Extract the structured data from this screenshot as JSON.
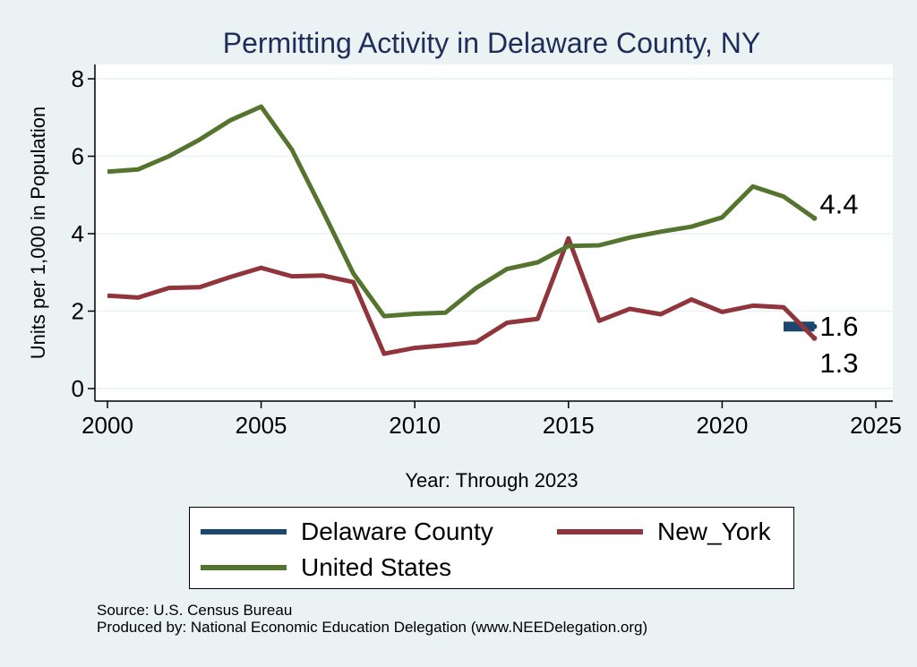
{
  "chart_data": {
    "type": "line",
    "title": "Permitting Activity in Delaware County, NY",
    "xlabel": "Year: Through 2023",
    "ylabel": "Units per 1,000 in Population",
    "xlim": [
      2000,
      2025
    ],
    "ylim": [
      0,
      8
    ],
    "x_ticks": [
      "2000",
      "2005",
      "2010",
      "2015",
      "2020",
      "2025"
    ],
    "y_ticks": [
      "0",
      "2",
      "4",
      "6",
      "8"
    ],
    "grid": true,
    "legend_position": "bottom",
    "series": [
      {
        "name": "Delaware County",
        "color": "#1a476f",
        "x": [
          2022,
          2023
        ],
        "y": [
          1.6,
          1.6
        ],
        "end_label": "1.6"
      },
      {
        "name": "New_York",
        "color": "#90353b",
        "x": [
          2000,
          2001,
          2002,
          2003,
          2004,
          2005,
          2006,
          2007,
          2008,
          2009,
          2010,
          2011,
          2012,
          2013,
          2014,
          2015,
          2016,
          2017,
          2018,
          2019,
          2020,
          2021,
          2022,
          2023
        ],
        "y": [
          2.4,
          2.35,
          2.6,
          2.62,
          2.88,
          3.12,
          2.9,
          2.92,
          2.75,
          0.9,
          1.05,
          1.12,
          1.2,
          1.7,
          1.8,
          3.88,
          1.75,
          2.06,
          1.92,
          2.3,
          1.98,
          2.14,
          2.1,
          1.3
        ],
        "end_label": "1.3"
      },
      {
        "name": "United States",
        "color": "#55752f",
        "x": [
          2000,
          2001,
          2002,
          2003,
          2004,
          2005,
          2006,
          2007,
          2008,
          2009,
          2010,
          2011,
          2012,
          2013,
          2014,
          2015,
          2016,
          2017,
          2018,
          2019,
          2020,
          2021,
          2022,
          2023
        ],
        "y": [
          5.6,
          5.66,
          6.0,
          6.43,
          6.93,
          7.28,
          6.17,
          4.6,
          2.97,
          1.87,
          1.93,
          1.96,
          2.6,
          3.09,
          3.26,
          3.68,
          3.7,
          3.9,
          4.05,
          4.18,
          4.42,
          5.22,
          4.96,
          4.4
        ],
        "end_label": "4.4"
      }
    ]
  },
  "legend": {
    "items": [
      {
        "label": "Delaware County",
        "color": "#1a476f"
      },
      {
        "label": "New_York",
        "color": "#90353b"
      },
      {
        "label": "United States",
        "color": "#55752f"
      }
    ]
  },
  "source": {
    "line1": "Source: U.S. Census Bureau",
    "line2": "Produced by: National Economic Education Delegation (www.NEEDelegation.org)"
  }
}
